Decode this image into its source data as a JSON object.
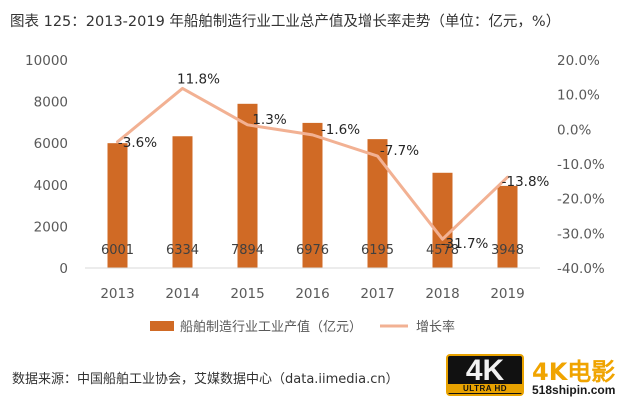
{
  "title": "图表 125：2013-2019 年船舶制造行业工业总产值及增长率走势（单位：亿元，%）",
  "source": "数据来源：中国船舶工业协会，艾媒数据中心（data.iimedia.cn）",
  "watermark": {
    "badge_main": "4K",
    "badge_sub": "ULTRA HD",
    "name": "4K电影",
    "url": "518shipin.com"
  },
  "colors": {
    "bar": "#d06a25",
    "line": "#f2b193",
    "axis_text": "#595959",
    "gridline": "#d9d9d9",
    "badge_accent": "#e8a200",
    "brand": "#f0a400"
  },
  "chart_data": {
    "type": "bar",
    "categories": [
      "2013",
      "2014",
      "2015",
      "2016",
      "2017",
      "2018",
      "2019"
    ],
    "series": [
      {
        "name": "船舶制造行业工业产值（亿元）",
        "type": "bar",
        "axis": "left",
        "values": [
          6001,
          6334,
          7894,
          6976,
          6195,
          4578,
          3948
        ],
        "labels": [
          "6001",
          "6334",
          "7894",
          "6976",
          "6195",
          "4578",
          "3948"
        ]
      },
      {
        "name": "增长率",
        "type": "line",
        "axis": "right",
        "values": [
          -3.6,
          11.8,
          1.3,
          -1.6,
          -7.7,
          -31.7,
          -13.8
        ],
        "labels": [
          "-3.6%",
          "11.8%",
          "1.3%",
          "-1.6%",
          "-7.7%",
          "-31.7%",
          "-13.8%"
        ]
      }
    ],
    "left_axis": {
      "min": 0,
      "max": 10000,
      "ticks": [
        "0",
        "2000",
        "4000",
        "6000",
        "8000",
        "10000"
      ]
    },
    "right_axis": {
      "min": -40,
      "max": 20,
      "ticks": [
        "-40.0%",
        "-30.0%",
        "-20.0%",
        "-10.0%",
        "0.0%",
        "10.0%",
        "20.0%"
      ]
    },
    "grid": false,
    "legend_position": "bottom"
  }
}
